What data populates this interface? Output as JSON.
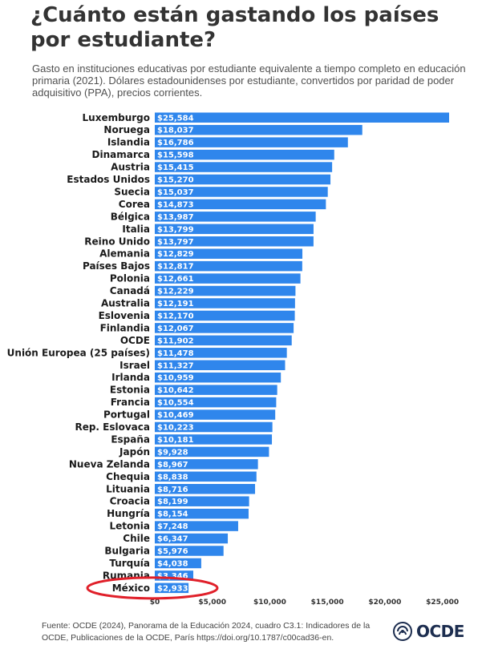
{
  "title": "¿Cuánto están gastando los países por estudiante?",
  "subtitle": "Gasto en instituciones educativas por estudiante equivalente a tiempo completo en educación primaria (2021). Dólares estadounidenses por estudiante, convertidos por paridad de poder adquisitivo (PPA), precios corrientes.",
  "footer": "Fuente: OCDE (2024), Panorama de la Educación 2024, cuadro C3.1: Indicadores de la OCDE, Publicaciones de la OCDE, París https://doi.org/10.1787/c00cad36-en.",
  "logo": {
    "text": "OCDE",
    "icon": "oecd-globe-icon"
  },
  "colors": {
    "bar": "#2f86ec",
    "highlight_ring": "#e0202a",
    "title": "#333333"
  },
  "chart_data": {
    "type": "bar",
    "orientation": "horizontal",
    "categories": [
      "Luxemburgo",
      "Noruega",
      "Islandia",
      "Dinamarca",
      "Austria",
      "Estados Unidos",
      "Suecia",
      "Corea",
      "Bélgica",
      "Italia",
      "Reino Unido",
      "Alemania",
      "Países Bajos",
      "Polonia",
      "Canadá",
      "Australia",
      "Eslovenia",
      "Finlandia",
      "OCDE",
      "Unión Europea (25 países)",
      "Israel",
      "Irlanda",
      "Estonia",
      "Francia",
      "Portugal",
      "Rep. Eslovaca",
      "España",
      "Japón",
      "Nueva Zelanda",
      "Chequia",
      "Lituania",
      "Croacia",
      "Hungría",
      "Letonia",
      "Chile",
      "Bulgaria",
      "Turquía",
      "Rumania",
      "México"
    ],
    "values": [
      25584,
      18037,
      16786,
      15598,
      15415,
      15270,
      15037,
      14873,
      13987,
      13799,
      13797,
      12829,
      12817,
      12661,
      12229,
      12191,
      12170,
      12067,
      11902,
      11478,
      11327,
      10959,
      10642,
      10554,
      10469,
      10223,
      10181,
      9928,
      8967,
      8838,
      8716,
      8199,
      8154,
      7248,
      6347,
      5976,
      4038,
      3346,
      2933
    ],
    "value_labels": [
      "$25,584",
      "$18,037",
      "$16,786",
      "$15,598",
      "$15,415",
      "$15,270",
      "$15,037",
      "$14,873",
      "$13,987",
      "$13,799",
      "$13,797",
      "$12,829",
      "$12,817",
      "$12,661",
      "$12,229",
      "$12,191",
      "$12,170",
      "$12,067",
      "$11,902",
      "$11,478",
      "$11,327",
      "$10,959",
      "$10,642",
      "$10,554",
      "$10,469",
      "$10,223",
      "$10,181",
      "$9,928",
      "$8,967",
      "$8,838",
      "$8,716",
      "$8,199",
      "$8,154",
      "$7,248",
      "$6,347",
      "$5,976",
      "$4,038",
      "$3,346",
      "$2,933"
    ],
    "xticks": [
      0,
      5000,
      10000,
      15000,
      20000,
      25000
    ],
    "xtick_labels": [
      "$0",
      "$5,000",
      "$10,000",
      "$15,000",
      "$20,000",
      "$25,000"
    ],
    "xlim": [
      0,
      25584
    ],
    "highlighted": "México",
    "grid": false,
    "legend": "none",
    "xlabel": "",
    "ylabel": ""
  }
}
